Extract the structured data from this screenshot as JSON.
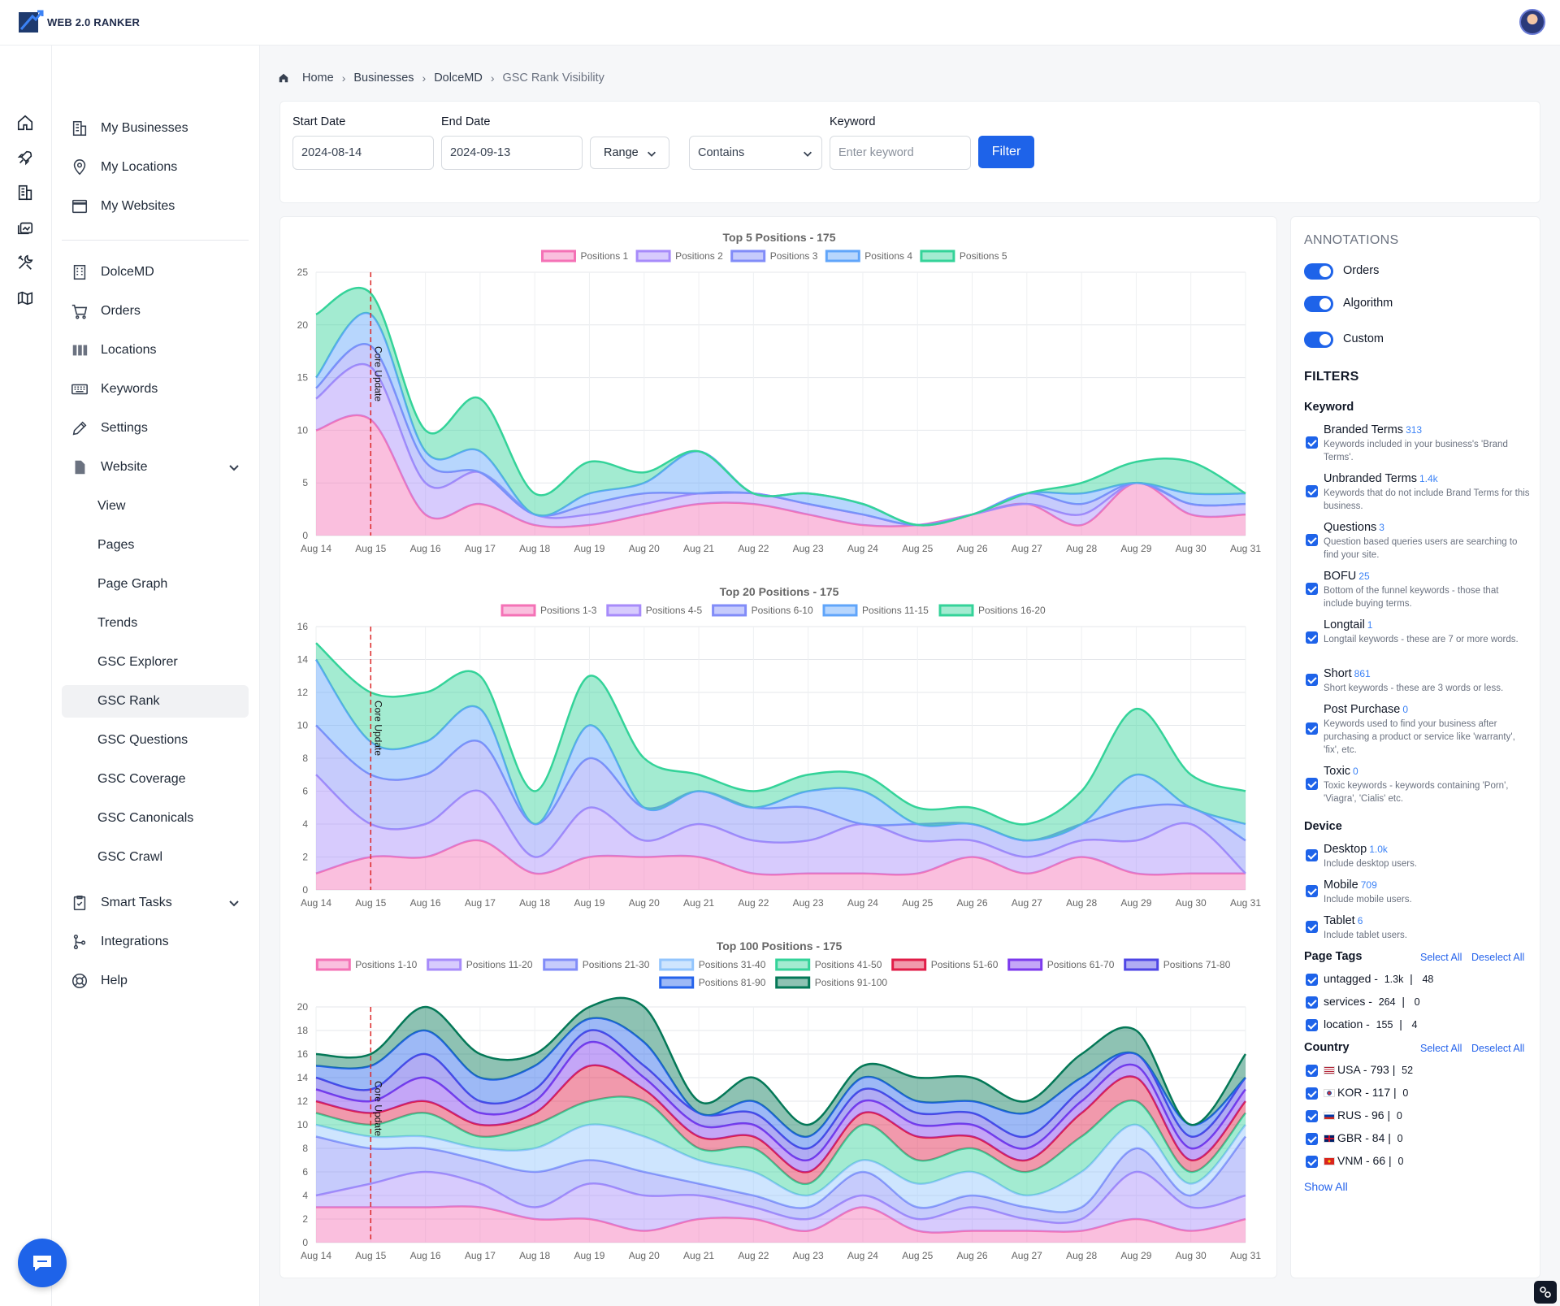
{
  "app": {
    "logo_text": "WEB 2.0 RANKER"
  },
  "sidebar": {
    "items": [
      {
        "label": "My Businesses"
      },
      {
        "label": "My Locations"
      },
      {
        "label": "My Websites"
      },
      {
        "label": "DolceMD"
      },
      {
        "label": "Orders"
      },
      {
        "label": "Locations"
      },
      {
        "label": "Keywords"
      },
      {
        "label": "Settings"
      },
      {
        "label": "Website"
      },
      {
        "label": "View"
      },
      {
        "label": "Pages"
      },
      {
        "label": "Page Graph"
      },
      {
        "label": "Trends"
      },
      {
        "label": "GSC Explorer"
      },
      {
        "label": "GSC Rank"
      },
      {
        "label": "GSC Questions"
      },
      {
        "label": "GSC Coverage"
      },
      {
        "label": "GSC Canonicals"
      },
      {
        "label": "GSC Crawl"
      },
      {
        "label": "Smart Tasks"
      },
      {
        "label": "Integrations"
      },
      {
        "label": "Help"
      }
    ]
  },
  "breadcrumb": [
    "Home",
    "Businesses",
    "DolceMD",
    "GSC Rank Visibility"
  ],
  "filters": {
    "start_label": "Start Date",
    "start_value": "2024-08-14",
    "end_label": "End Date",
    "end_value": "2024-09-13",
    "range_label": "Range",
    "match_value": "Contains",
    "keyword_label": "Keyword",
    "keyword_placeholder": "Enter keyword",
    "filter_button": "Filter"
  },
  "annotations": {
    "title": "ANNOTATIONS",
    "toggles": [
      {
        "label": "Orders",
        "on": true
      },
      {
        "label": "Algorithm",
        "on": true
      },
      {
        "label": "Custom",
        "on": true
      }
    ]
  },
  "side_filters": {
    "title": "FILTERS",
    "keyword_title": "Keyword",
    "keyword_items": [
      {
        "title": "Branded Terms",
        "count": "313",
        "desc": "Keywords included in your business's 'Brand Terms'."
      },
      {
        "title": "Unbranded Terms",
        "count": "1.4k",
        "desc": "Keywords that do not include Brand Terms for this business."
      },
      {
        "title": "Questions",
        "count": "3",
        "desc": "Question based queries users are searching to find your site."
      },
      {
        "title": "BOFU",
        "count": "25",
        "desc": "Bottom of the funnel keywords - those that include buying terms."
      },
      {
        "title": "Longtail",
        "count": "1",
        "desc": "Longtail keywords - these are 7 or more words."
      },
      {
        "title": "Short",
        "count": "861",
        "desc": "Short keywords - these are 3 words or less."
      },
      {
        "title": "Post Purchase",
        "count": "0",
        "desc": "Keywords used to find your business after purchasing a product or service like 'warranty', 'fix', etc."
      },
      {
        "title": "Toxic",
        "count": "0",
        "desc": "Toxic keywords - keywords containing 'Porn', 'Viagra', 'Cialis' etc."
      }
    ],
    "device_title": "Device",
    "device_items": [
      {
        "title": "Desktop",
        "count": "1.0k",
        "desc": "Include desktop users."
      },
      {
        "title": "Mobile",
        "count": "709",
        "desc": "Include mobile users."
      },
      {
        "title": "Tablet",
        "count": "6",
        "desc": "Include tablet users."
      }
    ],
    "page_tags_title": "Page Tags",
    "select_all": "Select All",
    "deselect_all": "Deselect All",
    "page_tags": [
      {
        "name": "untagged -",
        "a": "1.3k",
        "b": "48"
      },
      {
        "name": "services -",
        "a": "264",
        "b": "0"
      },
      {
        "name": "location -",
        "a": "155",
        "b": "4"
      }
    ],
    "country_title": "Country",
    "countries": [
      {
        "name": "USA - 793 |",
        "b": "52"
      },
      {
        "name": "KOR - 117 |",
        "b": "0"
      },
      {
        "name": "RUS - 96 |",
        "b": "0"
      },
      {
        "name": "GBR - 84 |",
        "b": "0"
      },
      {
        "name": "VNM - 66 |",
        "b": "0"
      }
    ],
    "show_all": "Show All"
  },
  "chart_data": [
    {
      "type": "area",
      "title": "Top 5 Positions - 175",
      "x": [
        "Aug 14",
        "Aug 15",
        "Aug 16",
        "Aug 17",
        "Aug 18",
        "Aug 19",
        "Aug 20",
        "Aug 21",
        "Aug 22",
        "Aug 23",
        "Aug 24",
        "Aug 25",
        "Aug 26",
        "Aug 27",
        "Aug 28",
        "Aug 29",
        "Aug 30",
        "Aug 31"
      ],
      "ylim": [
        0,
        25
      ],
      "yticks": [
        0,
        5,
        10,
        15,
        20,
        25
      ],
      "stacked": true,
      "annotation": {
        "label": "Core Update",
        "x": "Aug 15",
        "color": "#dc2626"
      },
      "series": [
        {
          "name": "Positions 1",
          "color": "#f472b6",
          "values": [
            10,
            11,
            2,
            3,
            1,
            1,
            2,
            3,
            3,
            2,
            1,
            1,
            2,
            3,
            1,
            5,
            2,
            2
          ]
        },
        {
          "name": "Positions 2",
          "color": "#a78bfa",
          "values": [
            3,
            5,
            3,
            3,
            1,
            1,
            1,
            1,
            1,
            1,
            1,
            0,
            0,
            0,
            1,
            0,
            1,
            1
          ]
        },
        {
          "name": "Positions 3",
          "color": "#818cf8",
          "values": [
            1,
            2,
            2,
            0,
            0,
            1,
            1,
            0,
            0,
            0,
            0,
            0,
            0,
            1,
            1,
            0,
            0,
            0
          ]
        },
        {
          "name": "Positions 4",
          "color": "#60a5fa",
          "values": [
            1,
            3,
            1,
            2,
            0,
            1,
            1,
            4,
            0,
            1,
            1,
            0,
            0,
            0,
            1,
            0,
            1,
            1
          ]
        },
        {
          "name": "Positions 5",
          "color": "#34d399",
          "values": [
            6,
            2,
            2,
            5,
            2,
            3,
            1,
            0,
            0,
            0,
            0,
            0,
            0,
            0,
            1,
            2,
            3,
            0
          ]
        }
      ]
    },
    {
      "type": "area",
      "title": "Top 20 Positions - 175",
      "x": [
        "Aug 14",
        "Aug 15",
        "Aug 16",
        "Aug 17",
        "Aug 18",
        "Aug 19",
        "Aug 20",
        "Aug 21",
        "Aug 22",
        "Aug 23",
        "Aug 24",
        "Aug 25",
        "Aug 26",
        "Aug 27",
        "Aug 28",
        "Aug 29",
        "Aug 30",
        "Aug 31"
      ],
      "ylim": [
        0,
        16
      ],
      "yticks": [
        0,
        2,
        4,
        6,
        8,
        10,
        12,
        14,
        16
      ],
      "stacked": true,
      "annotation": {
        "label": "Core Update",
        "x": "Aug 15",
        "color": "#dc2626"
      },
      "series": [
        {
          "name": "Positions 1-3",
          "color": "#f472b6",
          "values": [
            1,
            2,
            2,
            3,
            1,
            2,
            2,
            2,
            1,
            1,
            1,
            1,
            2,
            1,
            2,
            1,
            1,
            1
          ]
        },
        {
          "name": "Positions 4-5",
          "color": "#a78bfa",
          "values": [
            6,
            2,
            2,
            3,
            1,
            3,
            1,
            2,
            2,
            2,
            3,
            2,
            1,
            1,
            1,
            2,
            3,
            0
          ]
        },
        {
          "name": "Positions 6-10",
          "color": "#818cf8",
          "values": [
            3,
            3,
            3,
            3,
            2,
            3,
            2,
            2,
            2,
            2,
            0,
            1,
            1,
            1,
            1,
            2,
            1,
            2
          ]
        },
        {
          "name": "Positions 11-15",
          "color": "#60a5fa",
          "values": [
            4,
            2,
            2,
            2,
            0,
            2,
            0,
            0,
            0,
            1,
            2,
            0,
            0,
            0,
            0,
            2,
            0,
            1
          ]
        },
        {
          "name": "Positions 16-20",
          "color": "#34d399",
          "values": [
            1,
            3,
            3,
            2,
            2,
            3,
            3,
            1,
            1,
            1,
            1,
            1,
            1,
            1,
            2,
            4,
            2,
            2
          ]
        }
      ]
    },
    {
      "type": "area",
      "title": "Top 100 Positions - 175",
      "x": [
        "Aug 14",
        "Aug 15",
        "Aug 16",
        "Aug 17",
        "Aug 18",
        "Aug 19",
        "Aug 20",
        "Aug 21",
        "Aug 22",
        "Aug 23",
        "Aug 24",
        "Aug 25",
        "Aug 26",
        "Aug 27",
        "Aug 28",
        "Aug 29",
        "Aug 30",
        "Aug 31"
      ],
      "ylim": [
        0,
        20
      ],
      "yticks": [
        0,
        2,
        4,
        6,
        8,
        10,
        12,
        14,
        16,
        18,
        20
      ],
      "stacked": true,
      "annotation": {
        "label": "Core Update",
        "x": "Aug 15",
        "color": "#dc2626"
      },
      "series": [
        {
          "name": "Positions 1-10",
          "color": "#f472b6",
          "values": [
            3,
            3,
            3,
            3,
            2,
            2,
            1,
            2,
            2,
            1,
            3,
            1,
            1,
            1,
            1,
            2,
            1,
            2
          ]
        },
        {
          "name": "Positions 11-20",
          "color": "#a78bfa",
          "values": [
            1,
            2,
            3,
            2,
            1,
            3,
            3,
            2,
            1,
            1,
            1,
            1,
            2,
            1,
            1,
            4,
            2,
            2
          ]
        },
        {
          "name": "Positions 21-30",
          "color": "#818cf8",
          "values": [
            5,
            3,
            2,
            2,
            3,
            2,
            2,
            1,
            1,
            1,
            2,
            1,
            1,
            1,
            1,
            2,
            1,
            5
          ]
        },
        {
          "name": "Positions 31-40",
          "color": "#93c5fd",
          "values": [
            1,
            1,
            1,
            1,
            2,
            3,
            3,
            2,
            2,
            1,
            1,
            2,
            2,
            1,
            3,
            2,
            1,
            1
          ]
        },
        {
          "name": "Positions 41-50",
          "color": "#34d399",
          "values": [
            1,
            1,
            2,
            1,
            2,
            2,
            3,
            1,
            2,
            1,
            3,
            2,
            2,
            2,
            3,
            2,
            1,
            1
          ]
        },
        {
          "name": "Positions 51-60",
          "color": "#e11d48",
          "values": [
            1,
            1,
            1,
            1,
            1,
            3,
            1,
            1,
            1,
            1,
            1,
            2,
            1,
            1,
            2,
            2,
            1,
            1
          ]
        },
        {
          "name": "Positions 61-70",
          "color": "#7c3aed",
          "values": [
            1,
            1,
            2,
            1,
            1,
            2,
            1,
            1,
            1,
            1,
            1,
            1,
            1,
            1,
            1,
            1,
            1,
            1
          ]
        },
        {
          "name": "Positions 71-80",
          "color": "#4f46e5",
          "values": [
            1,
            1,
            2,
            1,
            1,
            1,
            1,
            1,
            1,
            1,
            1,
            1,
            1,
            1,
            1,
            1,
            1,
            1
          ]
        },
        {
          "name": "Positions 81-90",
          "color": "#2563eb",
          "values": [
            1,
            2,
            2,
            2,
            2,
            1,
            2,
            0,
            1,
            1,
            1,
            1,
            1,
            2,
            1,
            0,
            1,
            0
          ]
        },
        {
          "name": "Positions 91-100",
          "color": "#047857",
          "values": [
            1,
            1,
            2,
            2,
            1,
            1,
            3,
            1,
            2,
            1,
            1,
            2,
            2,
            1,
            2,
            2,
            0,
            2
          ]
        }
      ]
    }
  ]
}
